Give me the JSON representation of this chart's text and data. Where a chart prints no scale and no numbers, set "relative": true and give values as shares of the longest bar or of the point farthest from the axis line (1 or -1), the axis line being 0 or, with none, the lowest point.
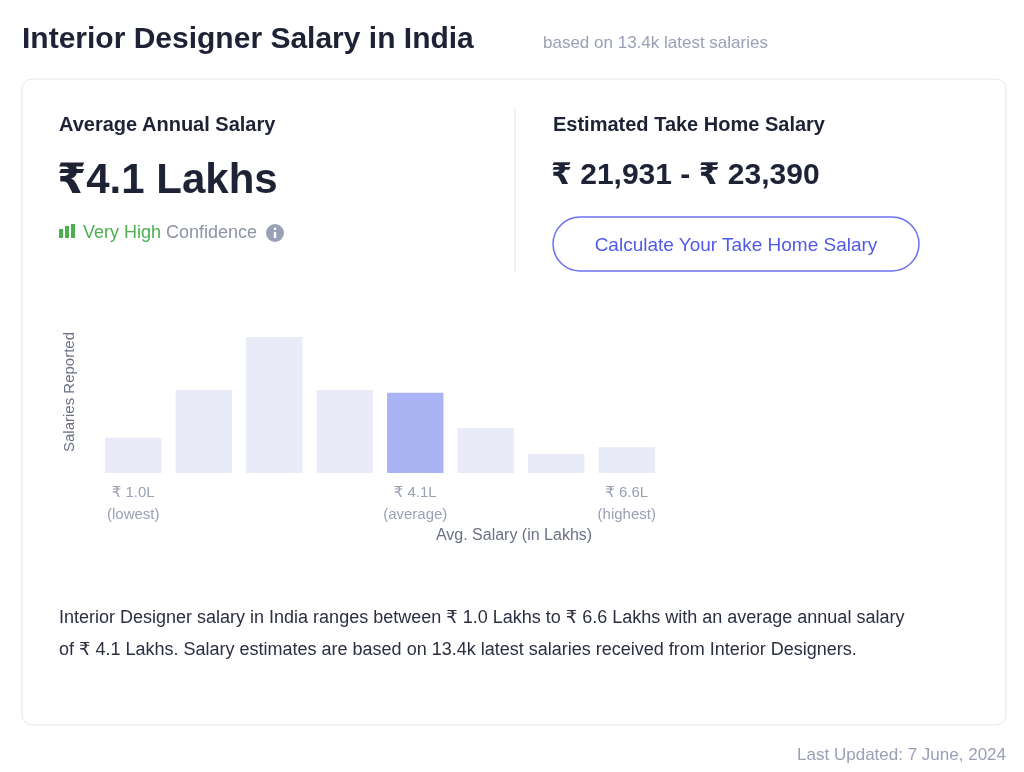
{
  "chart_data": {
    "type": "bar",
    "title": "Interior Designer Salary in India",
    "subtitle": "based on 13.4k latest salaries",
    "categories": [
      "₹ 1.0L\n(lowest)",
      null,
      null,
      null,
      "₹ 4.1L\n(average)",
      null,
      null,
      "₹ 6.6L\n(highest)"
    ],
    "values": [
      0.26,
      0.61,
      1,
      0.61,
      0.59,
      0.33,
      0.14,
      0.19
    ],
    "colors": [
      "#e9ebf9",
      "#e9ebf9",
      "#e9ebf9",
      "#e9ebf9",
      "#aab4f5",
      "#e9ebf9",
      "#e9ebf9",
      "#e9ebf9"
    ],
    "relative": true,
    "xlabel": "Avg. Salary (in Lakhs)",
    "ylabel": "Salaries Reported",
    "annotations": [
      "Average Annual Salary",
      "₹4.1 Lakhs",
      "Very High",
      "Confidence",
      "Estimated Take Home Salary",
      "₹ 21,931 - ₹ 23,390",
      "Calculate Your Take Home Salary",
      "Interior Designer salary in India ranges between ₹ 1.0 Lakhs to ₹ 6.6 Lakhs with an average annual salary of ₹ 4.1 Lakhs. Salary estimates are based on 13.4k latest salaries received from Interior Designers.",
      "Last Updated: 7 June, 2024"
    ]
  }
}
